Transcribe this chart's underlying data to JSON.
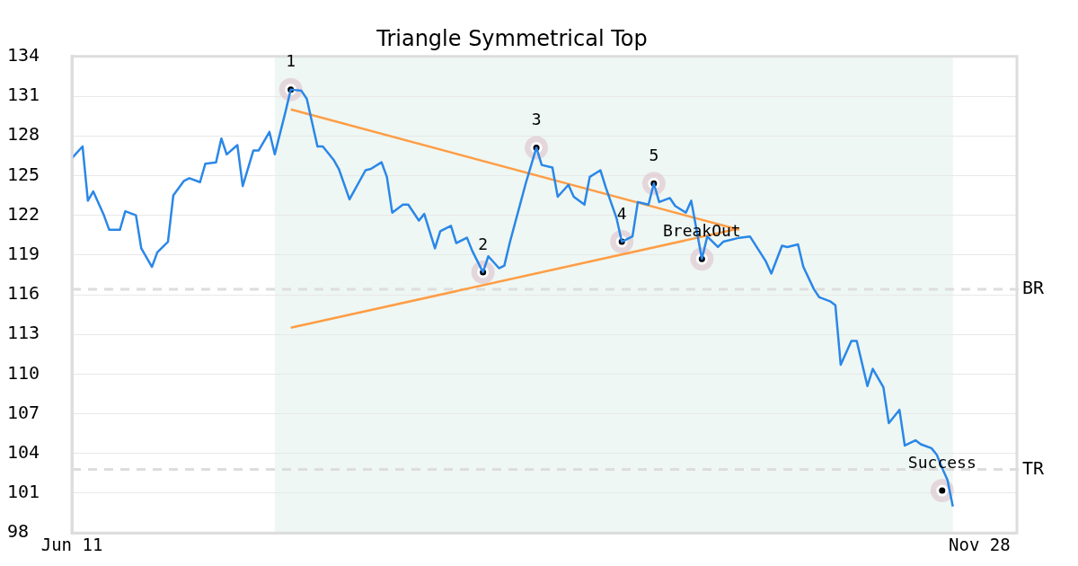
{
  "chart_data": {
    "type": "line",
    "title": "Triangle Symmetrical Top",
    "xlim": [
      "--06-11",
      "--12-05"
    ],
    "xticks": [
      {
        "value": "--06-11",
        "label": "Jun 11"
      },
      {
        "value": "--11-28",
        "label": "Nov 28"
      }
    ],
    "ylim": [
      98,
      134
    ],
    "yticks": [
      98,
      101,
      104,
      107,
      110,
      113,
      116,
      119,
      122,
      125,
      128,
      131,
      134
    ],
    "grid": "y",
    "legend": false,
    "series": [
      {
        "color": "#2a87e8",
        "marker": "none",
        "x": [
          "--06-11",
          "--06-13",
          "--06-14",
          "--06-15",
          "--06-17",
          "--06-18",
          "--06-20",
          "--06-21",
          "--06-23",
          "--06-24",
          "--06-26",
          "--06-27",
          "--06-29",
          "--06-30",
          "--07-02",
          "--07-03",
          "--07-05",
          "--07-06",
          "--07-08",
          "--07-09",
          "--07-10",
          "--07-12",
          "--07-13",
          "--07-15",
          "--07-16",
          "--07-18",
          "--07-19",
          "--07-21",
          "--07-22",
          "--07-24",
          "--07-25",
          "--07-27",
          "--07-28",
          "--07-30",
          "--07-31",
          "--08-02",
          "--08-05",
          "--08-06",
          "--08-08",
          "--08-09",
          "--08-10",
          "--08-12",
          "--08-13",
          "--08-15",
          "--08-16",
          "--08-18",
          "--08-19",
          "--08-21",
          "--08-22",
          "--08-24",
          "--08-25",
          "--08-27",
          "--08-28",
          "--08-30",
          "--08-31",
          "--09-01",
          "--09-03",
          "--09-04",
          "--09-06",
          "--09-07",
          "--09-09",
          "--09-10",
          "--09-12",
          "--09-13",
          "--09-15",
          "--09-16",
          "--09-18",
          "--09-19",
          "--09-21",
          "--09-22",
          "--09-24",
          "--09-25",
          "--09-27",
          "--09-28",
          "--09-29",
          "--10-01",
          "--10-02",
          "--10-04",
          "--10-05",
          "--10-07",
          "--10-08",
          "--10-10",
          "--10-11",
          "--10-13",
          "--10-14",
          "--10-16",
          "--10-19",
          "--10-20",
          "--10-22",
          "--10-23",
          "--10-25",
          "--10-26",
          "--10-28",
          "--10-29",
          "--10-31",
          "--11-01",
          "--11-02",
          "--11-04",
          "--11-05",
          "--11-07",
          "--11-08",
          "--11-10",
          "--11-11",
          "--11-13",
          "--11-14",
          "--11-16",
          "--11-17",
          "--11-19",
          "--11-20",
          "--11-21",
          "--11-22",
          "--11-23"
        ],
        "values": [
          126.3,
          127.2,
          123.1,
          123.8,
          122.0,
          120.9,
          120.9,
          122.3,
          122.0,
          119.5,
          118.1,
          119.2,
          120.0,
          123.5,
          124.6,
          124.8,
          124.5,
          125.9,
          126.0,
          127.8,
          126.6,
          127.3,
          124.2,
          126.9,
          126.9,
          128.3,
          126.6,
          129.8,
          131.5,
          131.4,
          130.8,
          127.2,
          127.2,
          126.2,
          125.5,
          123.2,
          125.4,
          125.5,
          126.0,
          124.9,
          122.2,
          122.8,
          122.8,
          121.6,
          122.1,
          119.5,
          120.8,
          121.2,
          119.9,
          120.3,
          119.3,
          117.7,
          118.9,
          118.0,
          118.2,
          119.9,
          122.9,
          124.4,
          127.1,
          125.8,
          125.6,
          123.4,
          124.3,
          123.4,
          122.8,
          124.9,
          125.4,
          124.1,
          121.8,
          120.0,
          120.4,
          123.0,
          122.8,
          124.4,
          123.0,
          123.3,
          122.7,
          122.2,
          123.1,
          118.7,
          120.4,
          119.6,
          120.0,
          120.2,
          120.3,
          120.4,
          118.5,
          117.6,
          119.7,
          119.6,
          119.8,
          118.1,
          116.4,
          115.8,
          115.5,
          115.2,
          110.7,
          112.5,
          112.5,
          109.1,
          110.4,
          109.0,
          106.3,
          107.3,
          104.6,
          105.0,
          104.7,
          104.4,
          103.9,
          102.9,
          102.0,
          100.0
        ]
      },
      {
        "color": "#ff9d45",
        "marker": "none",
        "x": [
          "--07-22",
          "--10-14"
        ],
        "values": [
          130.0,
          120.9
        ]
      },
      {
        "color": "#ff9d45",
        "marker": "none",
        "x": [
          "--07-22",
          "--10-14"
        ],
        "values": [
          113.5,
          121.0
        ]
      },
      {
        "type": "scatter",
        "color": "#000000",
        "marker": "circle",
        "x": [
          "--07-22",
          "--08-27",
          "--09-06",
          "--09-22",
          "--09-28",
          "--10-07",
          "--11-21"
        ],
        "values": [
          131.5,
          117.7,
          127.1,
          120.0,
          124.4,
          118.7,
          101.2
        ]
      }
    ],
    "ref_lines": [
      {
        "axis": "y",
        "value": 116.4,
        "label": "BR",
        "color": "#dddddd",
        "line_style": "dashed"
      },
      {
        "axis": "y",
        "value": 102.8,
        "label": "TR",
        "color": "#dddddd",
        "line_style": "dashed"
      }
    ],
    "bands": [
      {
        "axis": "x",
        "from": "--07-19",
        "to": "--11-23",
        "color": "#eef7f3"
      }
    ],
    "annotations": [
      {
        "text": "1",
        "x": "--07-22",
        "y": 131.5
      },
      {
        "text": "2",
        "x": "--08-27",
        "y": 117.7
      },
      {
        "text": "3",
        "x": "--09-06",
        "y": 127.1
      },
      {
        "text": "4",
        "x": "--09-22",
        "y": 120.0
      },
      {
        "text": "5",
        "x": "--09-28",
        "y": 124.4
      },
      {
        "text": "BreakOut",
        "x": "--10-07",
        "y": 118.7
      },
      {
        "text": "Success",
        "x": "--11-21",
        "y": 101.2
      }
    ]
  }
}
